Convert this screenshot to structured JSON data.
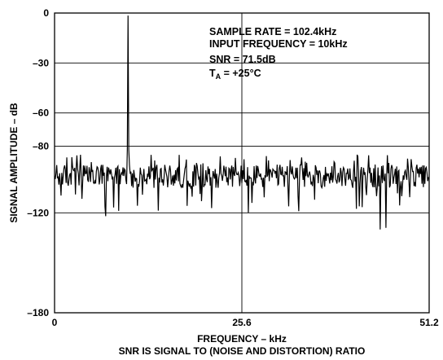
{
  "chart_data": {
    "type": "line",
    "title": "",
    "xlabel": "FREQUENCY – kHz",
    "caption": "SNR IS SIGNAL TO (NOISE AND DISTORTION) RATIO",
    "ylabel": "SIGNAL AMPLITUDE – dB",
    "xlim": [
      0,
      51.2
    ],
    "ylim": [
      -180,
      0
    ],
    "x_ticks": [
      0,
      25.6,
      51.2
    ],
    "x_tick_labels": [
      "0",
      "25.6",
      "51.2"
    ],
    "y_ticks": [
      0,
      -30,
      -60,
      -80,
      -120,
      -180
    ],
    "y_tick_labels": [
      "0",
      "–30",
      "–60",
      "–80",
      "–120",
      "–180"
    ],
    "grid": true,
    "grid_x": [
      25.6
    ],
    "grid_y": [
      -30,
      -60,
      -80,
      -120
    ],
    "annotations": {
      "sample_rate": "SAMPLE RATE = 102.4kHz",
      "input_frequency": "INPUT FREQUENCY = 10kHz",
      "snr": "SNR = 71.5dB",
      "temp_main": "T",
      "temp_sub": "A",
      "temp_value": " = +25°C"
    },
    "series": [
      {
        "signal": {
          "frequency_khz": 10,
          "amplitude_db": -1.5
        },
        "noise_floor_mean_db": -98,
        "noise_floor_range_db": [
          -130,
          -79
        ]
      }
    ],
    "line_color": "#000000"
  }
}
